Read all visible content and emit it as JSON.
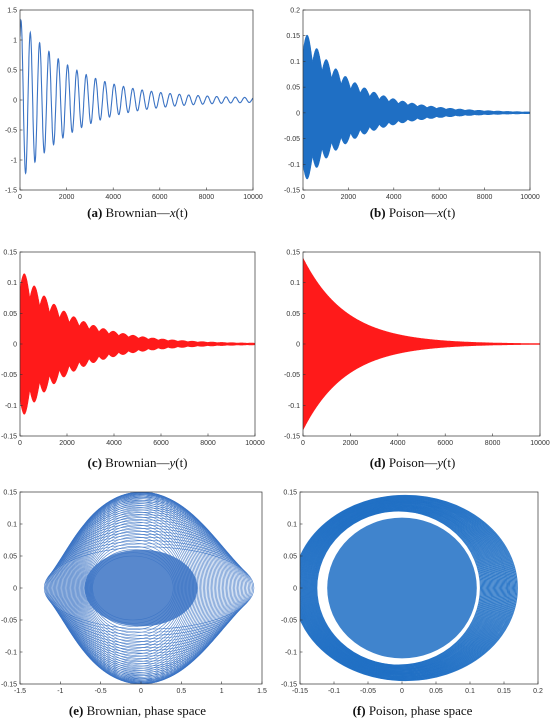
{
  "panels": [
    {
      "id": "a",
      "label": "(a)",
      "text": "Brownian—",
      "var": "x",
      "arg": "(t)",
      "tail": ""
    },
    {
      "id": "b",
      "label": "(b)",
      "text": "Poison—",
      "var": "x",
      "arg": "(t)",
      "tail": ""
    },
    {
      "id": "c",
      "label": "(c)",
      "text": "Brownian—",
      "var": "y",
      "arg": "(t)",
      "tail": ""
    },
    {
      "id": "d",
      "label": "(d)",
      "text": "Poison—",
      "var": "y",
      "arg": "(t)",
      "tail": ""
    },
    {
      "id": "e",
      "label": "(e)",
      "text": "Brownian, phase space",
      "var": "",
      "arg": "",
      "tail": ""
    },
    {
      "id": "f",
      "label": "(f)",
      "text": "Poison, phase space",
      "var": "",
      "arg": "",
      "tail": ""
    }
  ],
  "chart_data": [
    {
      "id": "a",
      "type": "line",
      "title": "",
      "xlabel": "",
      "ylabel": "",
      "xlim": [
        0,
        10000
      ],
      "ylim": [
        -1.5,
        1.5
      ],
      "grid": false,
      "xticks": [
        0,
        2000,
        4000,
        6000,
        8000,
        10000
      ],
      "yticks": [
        -1.5,
        -1,
        -0.5,
        0,
        0.5,
        1,
        1.5
      ],
      "color": "#3b73c4",
      "series": [
        {
          "amplitude0": 1.35,
          "decay_per_unit": 0.00042,
          "period": 400,
          "envelope_floor": 0.02
        }
      ]
    },
    {
      "id": "b",
      "type": "line",
      "title": "",
      "xlabel": "",
      "ylabel": "",
      "xlim": [
        0,
        10000
      ],
      "ylim": [
        -0.15,
        0.2
      ],
      "grid": false,
      "xticks": [
        0,
        2000,
        4000,
        6000,
        8000,
        10000
      ],
      "yticks": [
        -0.15,
        -0.1,
        -0.05,
        0,
        0.05,
        0.1,
        0.15,
        0.2
      ],
      "color": "#1f6fc4",
      "series": [
        {
          "amplitude0": 0.165,
          "decay_per_unit": 0.00045,
          "beat_period": 420,
          "filled_band": true
        }
      ]
    },
    {
      "id": "c",
      "type": "line",
      "title": "",
      "xlabel": "",
      "ylabel": "",
      "xlim": [
        0,
        10000
      ],
      "ylim": [
        -0.15,
        0.15
      ],
      "grid": false,
      "xticks": [
        0,
        2000,
        4000,
        6000,
        8000,
        10000
      ],
      "yticks": [
        -0.15,
        -0.1,
        -0.05,
        0,
        0.05,
        0.1,
        0.15
      ],
      "color": "#ff1a1a",
      "series": [
        {
          "amplitude0": 0.125,
          "decay_per_unit": 0.00045,
          "beat_period": 420,
          "filled_band": true
        }
      ]
    },
    {
      "id": "d",
      "type": "line",
      "title": "",
      "xlabel": "",
      "ylabel": "",
      "xlim": [
        0,
        10000
      ],
      "ylim": [
        -0.15,
        0.15
      ],
      "grid": false,
      "xticks": [
        0,
        2000,
        4000,
        6000,
        8000,
        10000
      ],
      "yticks": [
        -0.15,
        -0.1,
        -0.05,
        0,
        0.05,
        0.1,
        0.15
      ],
      "color": "#ff1a1a",
      "series": [
        {
          "amplitude0": 0.14,
          "decay_per_unit": 0.00055,
          "filled_band": true
        }
      ]
    },
    {
      "id": "e",
      "type": "line",
      "title": "",
      "xlabel": "",
      "ylabel": "",
      "xlim": [
        -1.5,
        1.5
      ],
      "ylim": [
        -0.15,
        0.15
      ],
      "grid": false,
      "xticks": [
        -1.5,
        -1,
        -0.5,
        0,
        0.5,
        1,
        1.5
      ],
      "yticks": [
        -0.15,
        -0.1,
        -0.05,
        0,
        0.05,
        0.1,
        0.15
      ],
      "color": "#3b73c4",
      "series": [
        {
          "x_amplitude_range": [
            0.5,
            1.3
          ],
          "y_amplitude_range": [
            0.05,
            0.15
          ],
          "center_shift_x": 0.2
        }
      ]
    },
    {
      "id": "f",
      "type": "line",
      "title": "",
      "xlabel": "",
      "ylabel": "",
      "xlim": [
        -0.15,
        0.2
      ],
      "ylim": [
        -0.15,
        0.15
      ],
      "grid": false,
      "xticks": [
        -0.15,
        -0.1,
        -0.05,
        0,
        0.05,
        0.1,
        0.15,
        0.2
      ],
      "yticks": [
        -0.15,
        -0.1,
        -0.05,
        0,
        0.05,
        0.1,
        0.15
      ],
      "color": "#1f6fc4",
      "series": [
        {
          "x_amplitude_range": [
            0.12,
            0.165
          ],
          "y_amplitude_range": [
            0.12,
            0.145
          ],
          "center_shift_x": 0.01
        }
      ]
    }
  ]
}
